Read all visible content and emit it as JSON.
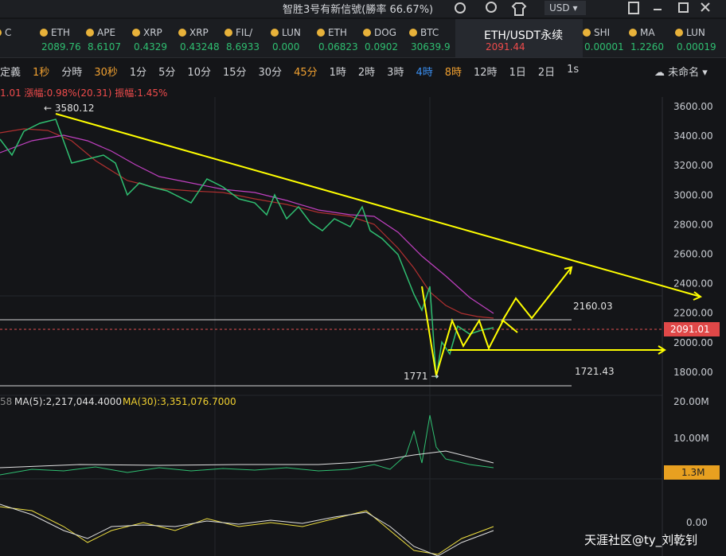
{
  "header": {
    "title": "智胜3号有新信號(勝率 66.67%)",
    "currency": "USD"
  },
  "tickers": [
    {
      "name": "C",
      "price": ""
    },
    {
      "name": "ETH",
      "price": "2089.76"
    },
    {
      "name": "APE",
      "price": "8.6107"
    },
    {
      "name": "XRP",
      "price": "0.4329"
    },
    {
      "name": "XRP",
      "price": "0.43248"
    },
    {
      "name": "FIL/",
      "price": "8.6933"
    },
    {
      "name": "LUN",
      "price": "0.000"
    },
    {
      "name": "ETH",
      "price": "0.06823"
    },
    {
      "name": "DOG",
      "price": "0.0902"
    },
    {
      "name": "BTC",
      "price": "30639.9"
    },
    {
      "name": "ETH/USDT永续",
      "price": "2091.44"
    },
    {
      "name": "SHI",
      "price": "0.00001"
    },
    {
      "name": "MA",
      "price": "1.2260"
    },
    {
      "name": "LUN",
      "price": "0.00019"
    }
  ],
  "timeframes": [
    "定義",
    "1秒",
    "分時",
    "30秒",
    "1分",
    "5分",
    "10分",
    "15分",
    "30分",
    "45分",
    "1時",
    "2時",
    "3時",
    "4時",
    "8時",
    "12時",
    "1日",
    "2日",
    "1s"
  ],
  "layout_name": "未命名",
  "info": "1.01  漲幅:0.98%(20.31)  振幅:1.45%",
  "price_axis": [
    "3600.00",
    "3400.00",
    "3200.00",
    "3000.00",
    "2800.00",
    "2600.00",
    "2400.00",
    "2200.00",
    "2000.00",
    "1800.00"
  ],
  "last_price": "2091.01",
  "annotations": {
    "high": "← 3580.12",
    "level_high": "2160.03",
    "level_low": "1721.43",
    "low": "1771 →"
  },
  "volume": {
    "legend_prefix": "58",
    "ma5": "MA(5):2,217,044.4000",
    "ma30": "MA(30):3,351,076.7000",
    "axis": [
      "20.00M",
      "10.00M"
    ],
    "current": "1.3M"
  },
  "macd": {
    "axis": "0.00"
  },
  "watermark": "天涯社区@ty_刘乾钊"
}
